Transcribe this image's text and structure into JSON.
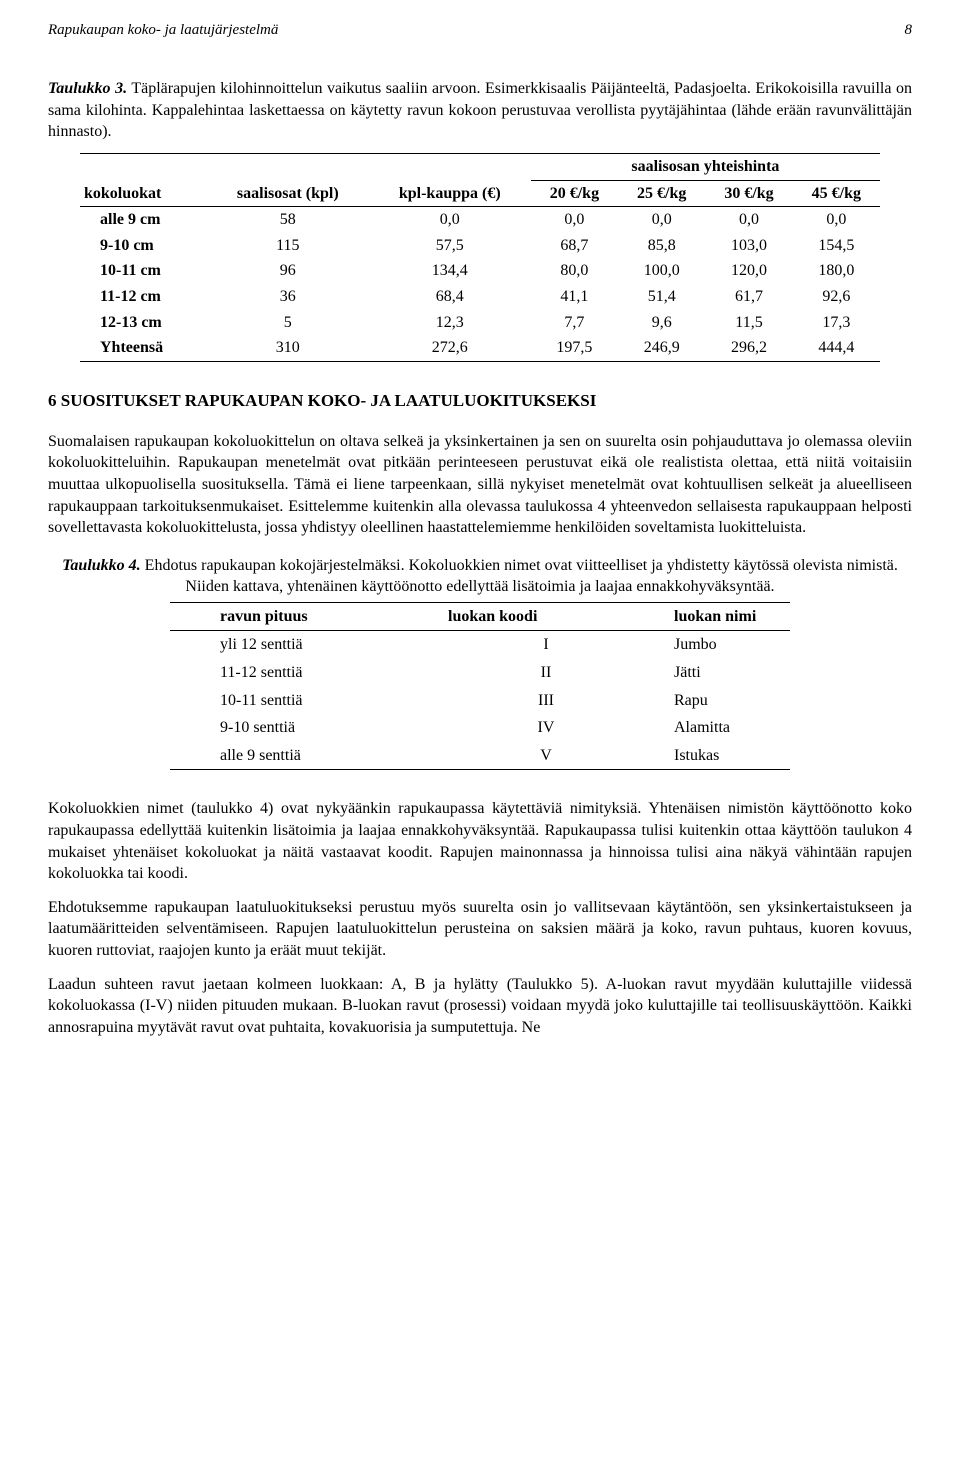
{
  "header": {
    "title": "Rapukaupan koko- ja laatujärjestelmä",
    "page": "8"
  },
  "table3": {
    "caption_title": "Taulukko 3.",
    "caption_rest": " Täplärapujen kilohinnoittelun vaikutus saaliin arvoon. Esimerkkisaalis Päijänteeltä, Padasjoelta. Erikokoisilla ravuilla on sama kilohinta. Kappalehintaa laskettaessa on käytetty ravun kokoon perustuvaa verollista pyytäjähintaa (lähde erään ravunvälittäjän hinnasto).",
    "span_header": "saalisosan yhteishinta",
    "columns": [
      "kokoluokat",
      "saalisosat (kpl)",
      "kpl-kauppa (€)",
      "20 €/kg",
      "25 €/kg",
      "30 €/kg",
      "45 €/kg"
    ],
    "rows": [
      [
        "alle 9 cm",
        "58",
        "0,0",
        "0,0",
        "0,0",
        "0,0",
        "0,0"
      ],
      [
        "9-10 cm",
        "115",
        "57,5",
        "68,7",
        "85,8",
        "103,0",
        "154,5"
      ],
      [
        "10-11 cm",
        "96",
        "134,4",
        "80,0",
        "100,0",
        "120,0",
        "180,0"
      ],
      [
        "11-12 cm",
        "36",
        "68,4",
        "41,1",
        "51,4",
        "61,7",
        "92,6"
      ],
      [
        "12-13 cm",
        "5",
        "12,3",
        "7,7",
        "9,6",
        "11,5",
        "17,3"
      ],
      [
        "Yhteensä",
        "310",
        "272,6",
        "197,5",
        "246,9",
        "296,2",
        "444,4"
      ]
    ]
  },
  "section6": {
    "heading": "6   SUOSITUKSET RAPUKAUPAN KOKO- JA LAATULUOKITUKSEKSI",
    "p1": "Suomalaisen rapukaupan kokoluokittelun on oltava selkeä ja yksinkertainen ja sen on suurelta osin pohjauduttava jo olemassa oleviin kokoluokitteluihin. Rapukaupan menetelmät ovat pitkään perinteeseen perustuvat eikä ole realistista olettaa, että niitä voitaisiin muuttaa ulkopuolisella suosituksella. Tämä ei liene tarpeenkaan, sillä nykyiset menetelmät ovat kohtuullisen selkeät ja alueelliseen rapukauppaan tarkoituksenmukaiset. Esittelemme kuitenkin alla olevassa taulukossa 4 yhteenvedon sellaisesta rapukauppaan helposti sovellettavasta kokoluokittelusta, jossa yhdistyy oleellinen haastattelemiemme henkilöiden soveltamista luokitteluista."
  },
  "table4": {
    "caption_title": "Taulukko 4.",
    "caption_rest": " Ehdotus rapukaupan kokojärjestelmäksi. Kokoluokkien nimet ovat viitteelliset ja yhdistetty käytössä olevista nimistä. Niiden kattava, yhtenäinen käyttöönotto edellyttää lisätoimia ja laajaa ennakkohyväksyntää.",
    "columns": [
      "ravun pituus",
      "luokan koodi",
      "luokan nimi"
    ],
    "rows": [
      [
        "yli 12 senttiä",
        "I",
        "Jumbo"
      ],
      [
        "11-12 senttiä",
        "II",
        "Jätti"
      ],
      [
        "10-11 senttiä",
        "III",
        "Rapu"
      ],
      [
        "9-10 senttiä",
        "IV",
        "Alamitta"
      ],
      [
        "alle 9 senttiä",
        "V",
        "Istukas"
      ]
    ]
  },
  "footer": {
    "p2": "Kokoluokkien nimet (taulukko 4) ovat nykyäänkin rapukaupassa käytettäviä nimityksiä. Yhtenäisen nimistön käyttöönotto koko rapukaupassa edellyttää kuitenkin lisätoimia ja laajaa ennakkohyväksyntää. Rapukaupassa tulisi kuitenkin ottaa käyttöön taulukon 4 mukaiset yhtenäiset kokoluokat ja näitä vastaavat koodit. Rapujen mainonnassa ja hinnoissa tulisi aina näkyä vähintään rapujen kokoluokka tai koodi.",
    "p3": "Ehdotuksemme rapukaupan laatuluokitukseksi perustuu myös suurelta osin jo vallitsevaan käytäntöön, sen yksinkertaistukseen ja laatumääritteiden selventämiseen. Rapujen laatuluokittelun perusteina on saksien määrä ja koko, ravun puhtaus, kuoren kovuus, kuoren ruttoviat, raajojen kunto ja eräät muut tekijät.",
    "p4": "Laadun suhteen ravut jaetaan kolmeen luokkaan: A, B ja hylätty (Taulukko 5). A-luokan ravut myydään kuluttajille viidessä kokoluokassa (I-V) niiden pituuden mukaan. B-luokan ravut (prosessi) voidaan myydä joko kuluttajille tai teollisuuskäyttöön. Kaikki annosrapuina myytävät ravut ovat puhtaita, kovakuorisia ja sumputettuja. Ne"
  }
}
